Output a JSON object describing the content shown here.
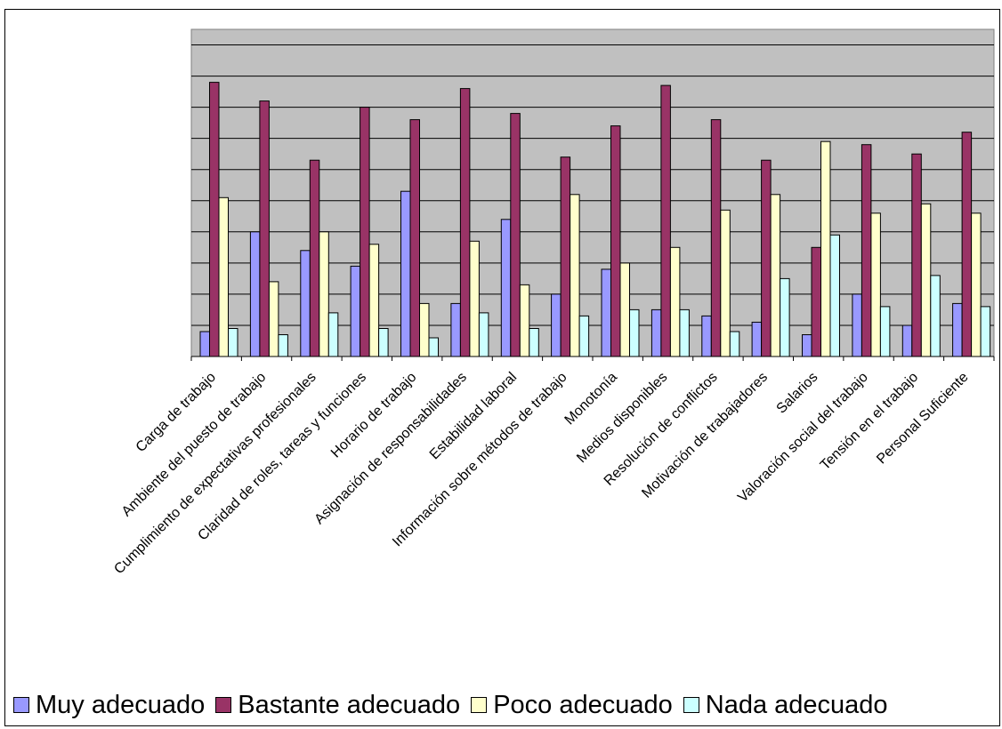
{
  "chart_data": {
    "type": "bar",
    "categories": [
      "Carga de trabajo",
      "Ambiente del puesto de trabajo",
      "Cumplimiento de expectativas profesionales",
      "Claridad de roles, tareas y funciones",
      "Horario de trabajo",
      "Asignación de responsabilidades",
      "Estabilidad laboral",
      "Información sobre métodos de trabajo",
      "Monotonía",
      "Medios disponibles",
      "Resolución de conflictos",
      "Motivación de trabajadores",
      "Salarios",
      "Valoración social del trabajo",
      "Tensión en el trabajo",
      "Personal Suficiente"
    ],
    "series": [
      {
        "name": "Muy adecuado",
        "color": "#9999ff",
        "values": [
          0.8,
          4.0,
          3.4,
          2.9,
          5.3,
          1.7,
          4.4,
          2.0,
          2.8,
          1.5,
          1.3,
          1.1,
          0.7,
          2.0,
          1.0,
          1.7
        ]
      },
      {
        "name": "Bastante adecuado",
        "color": "#993366",
        "values": [
          8.8,
          8.2,
          6.3,
          8.0,
          7.6,
          8.6,
          7.8,
          6.4,
          7.4,
          8.7,
          7.6,
          6.3,
          3.5,
          6.8,
          6.5,
          7.2
        ]
      },
      {
        "name": "Poco adecuado",
        "color": "#ffffcc",
        "values": [
          5.1,
          2.4,
          4.0,
          3.6,
          1.7,
          3.7,
          2.3,
          5.2,
          3.0,
          3.5,
          4.7,
          5.2,
          6.9,
          4.6,
          4.9,
          4.6
        ]
      },
      {
        "name": "Nada adecuado",
        "color": "#ccffff",
        "values": [
          0.9,
          0.7,
          1.4,
          0.9,
          0.6,
          1.4,
          0.9,
          1.3,
          1.5,
          1.5,
          0.8,
          2.5,
          3.9,
          1.6,
          2.6,
          1.6
        ]
      }
    ],
    "ylim": [
      0,
      10.5
    ],
    "y_gridlines": [
      1,
      2,
      3,
      4,
      5,
      6,
      7,
      8,
      9,
      10
    ],
    "grid": true,
    "plot_background": "#c0c0c0",
    "legend_position": "bottom",
    "y_tick_labels_visible": false
  },
  "legend": {
    "items": [
      {
        "label": "Muy adecuado",
        "color": "#9999ff"
      },
      {
        "label": "Bastante adecuado",
        "color": "#993366"
      },
      {
        "label": "Poco adecuado",
        "color": "#ffffcc"
      },
      {
        "label": "Nada adecuado",
        "color": "#ccffff"
      }
    ]
  }
}
